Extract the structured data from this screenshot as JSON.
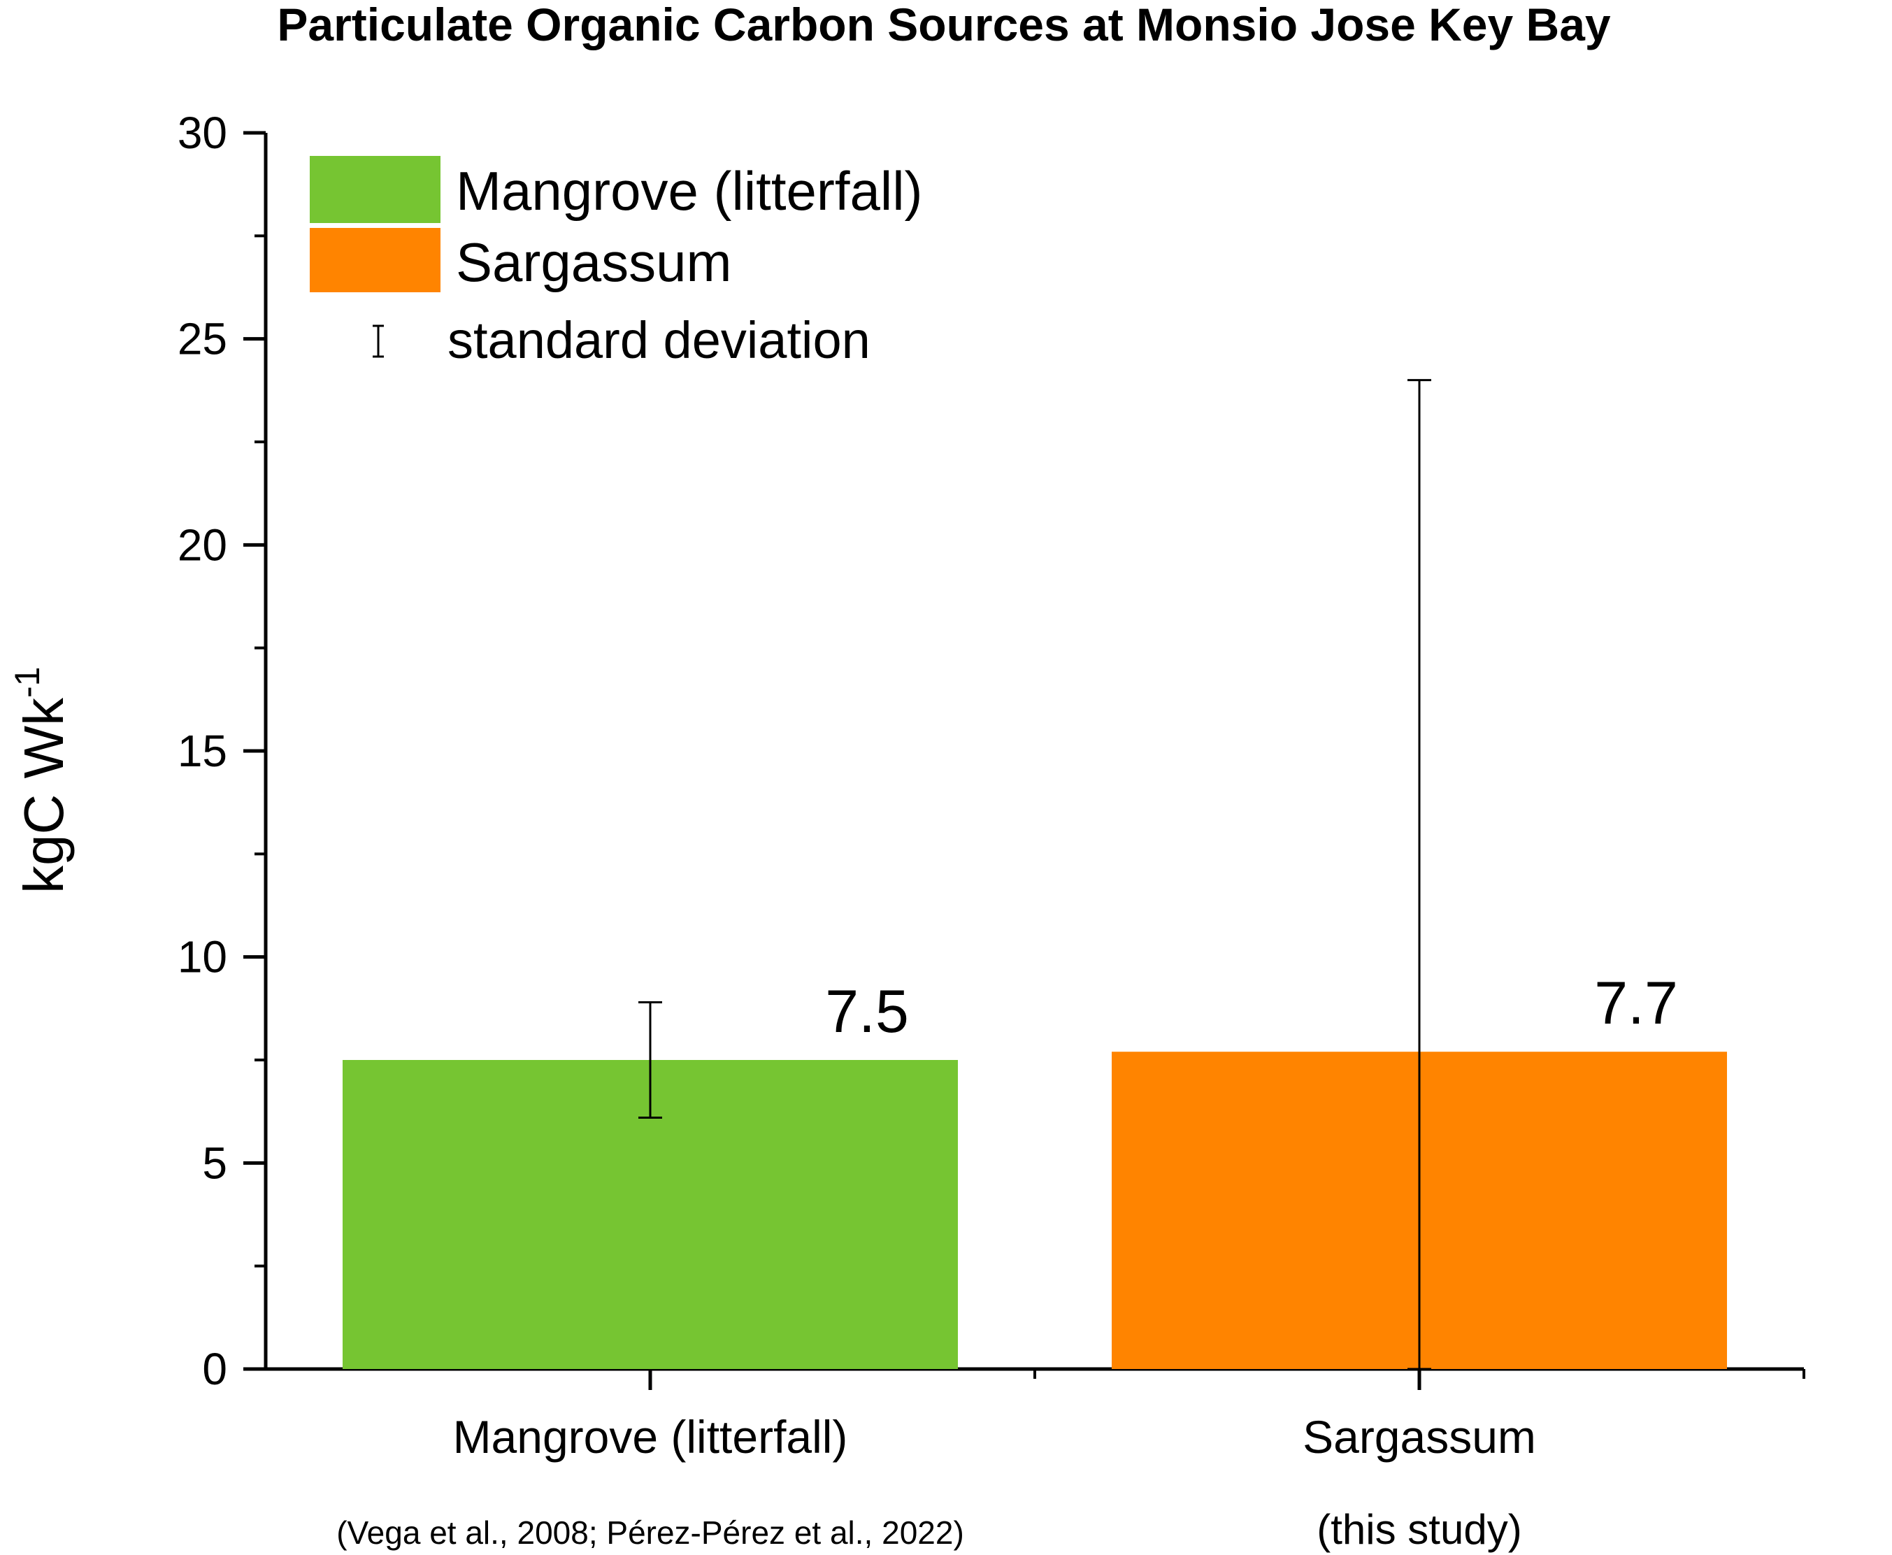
{
  "chart_data": {
    "type": "bar",
    "title": "Particulate Organic Carbon Sources at Monsio Jose Key Bay",
    "ylabel": "kgC Wk",
    "ylabel_superscript": "-1",
    "ylim": [
      0,
      30
    ],
    "yticks": [
      "0",
      "5",
      "10",
      "15",
      "20",
      "25",
      "30"
    ],
    "grid": false,
    "legend_position": "top-left",
    "categories": [
      "Mangrove (litterfall)",
      "Sargassum"
    ],
    "category_sublabels": [
      "(Vega et al., 2008; Pérez-Pérez et al., 2022)",
      "(this study)"
    ],
    "values": [
      7.5,
      7.7
    ],
    "value_labels": [
      "7.5",
      "7.7"
    ],
    "error_low": [
      6.1,
      0
    ],
    "error_high": [
      8.9,
      24.0
    ],
    "colors": [
      "#76c532",
      "#ff8400"
    ],
    "legend": [
      "Mangrove (litterfall)",
      "Sargassum",
      "standard deviation"
    ]
  }
}
